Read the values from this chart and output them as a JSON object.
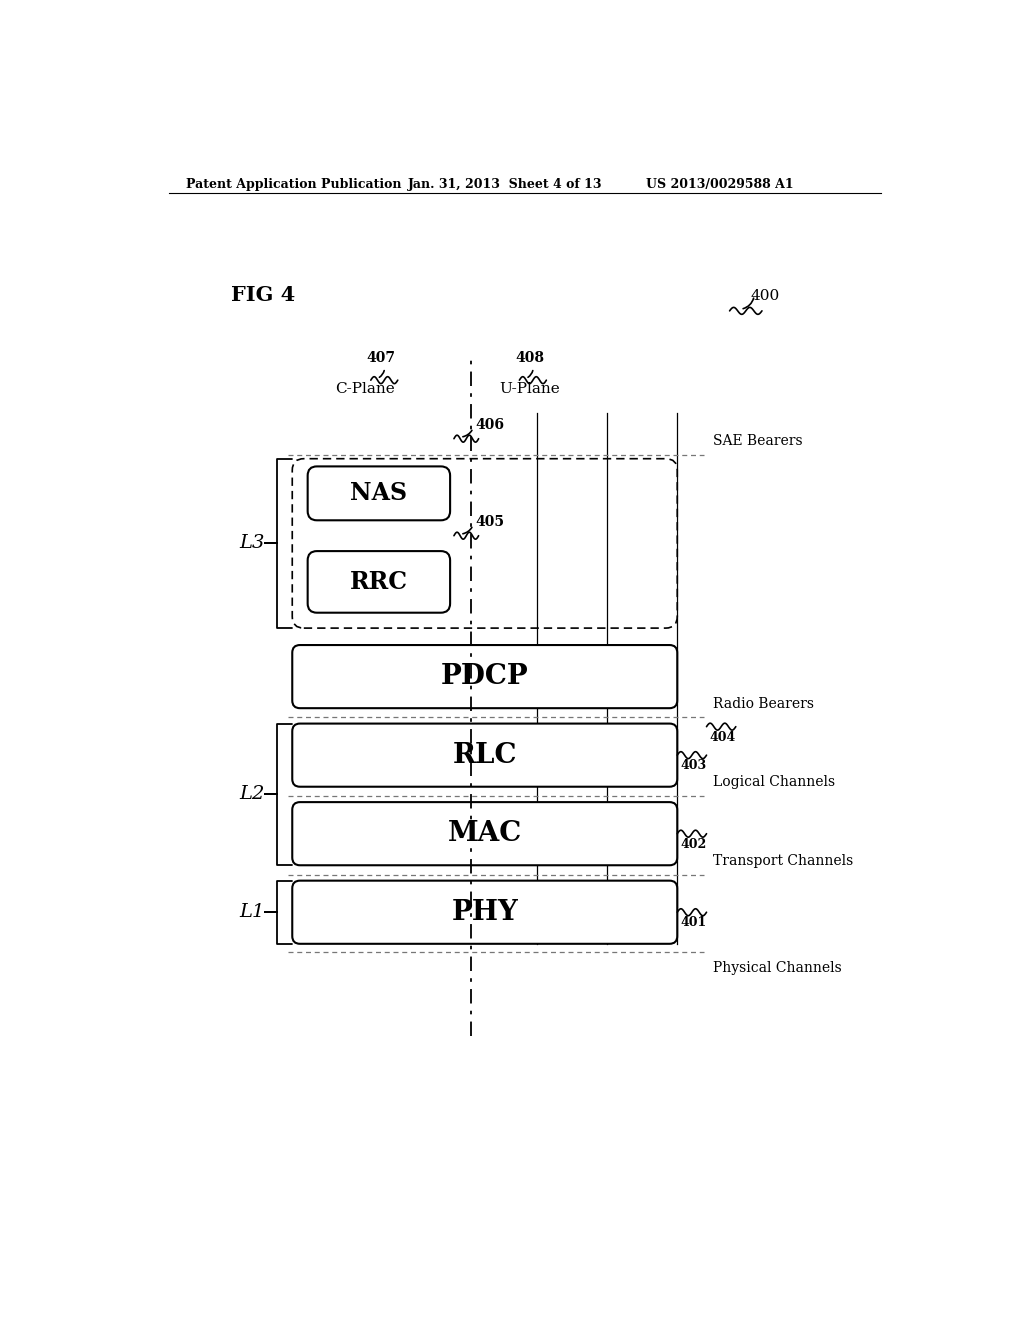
{
  "fig_label": "FIG 4",
  "patent_header_left": "Patent Application Publication",
  "patent_header_mid": "Jan. 31, 2013  Sheet 4 of 13",
  "patent_header_right": "US 2013/0029588 A1",
  "ref_400": "400",
  "ref_407": "407",
  "ref_408": "408",
  "ref_406": "406",
  "ref_405": "405",
  "ref_404": "404",
  "ref_403": "403",
  "ref_402": "402",
  "ref_401": "401",
  "label_cplane": "C-Plane",
  "label_uplane": "U-Plane",
  "label_nas": "NAS",
  "label_rrc": "RRC",
  "label_pdcp": "PDCP",
  "label_rlc": "RLC",
  "label_mac": "MAC",
  "label_phy": "PHY",
  "label_l3": "L3",
  "label_l2": "L2",
  "label_l1": "L1",
  "label_sae_bearers": "SAE Bearers",
  "label_radio_bearers": "Radio Bearers",
  "label_logical_channels": "Logical Channels",
  "label_transport_channels": "Transport Channels",
  "label_physical_channels": "Physical Channels",
  "bg_color": "#ffffff",
  "box_edge_color": "#000000",
  "box_fill_color": "#ffffff",
  "text_color": "#000000"
}
